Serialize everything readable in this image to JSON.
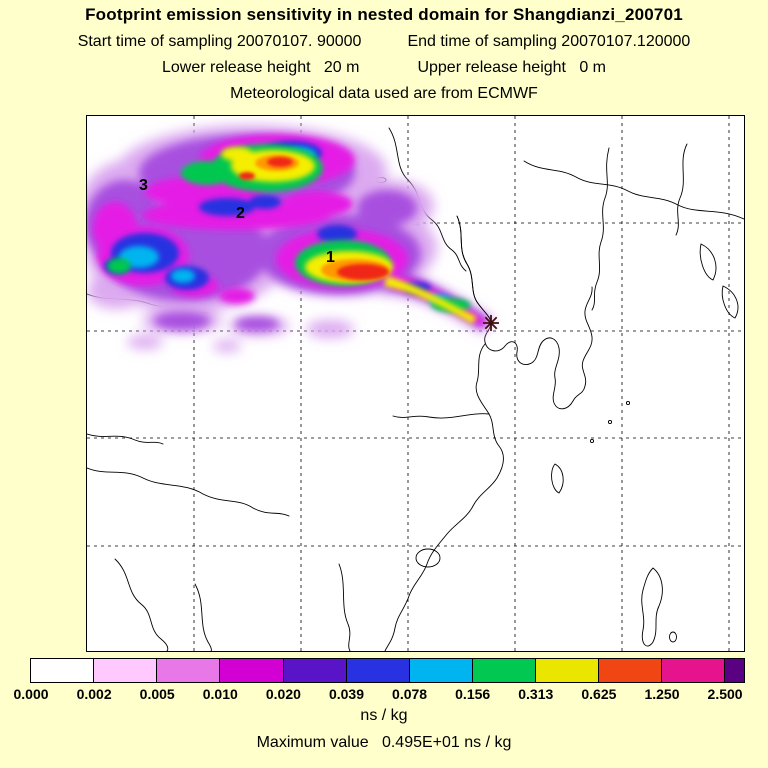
{
  "header": {
    "title": "Footprint emission sensitivity in nested domain for Shangdianzi_200701",
    "sampling": {
      "start": "Start time of sampling 20070107. 90000",
      "end": "End time of sampling 20070107.120000"
    },
    "release": {
      "lower": "Lower release height   20 m",
      "upper": "Upper release height   0 m"
    },
    "met_source": "Meteorological data used are from ECMWF"
  },
  "map": {
    "annotations": [
      {
        "text": "3"
      },
      {
        "text": "2"
      },
      {
        "text": "1"
      }
    ],
    "marker": "station-asterisk",
    "marker_color": "#401010"
  },
  "plume": {
    "levels": {
      "lilac": "#dcaaf0",
      "violet": "#a850e0",
      "magenta": "#e51ee5",
      "blue": "#2832e0",
      "cyan": "#00b4f0",
      "green": "#00c850",
      "yellow": "#f5ee00",
      "orange": "#ff9900",
      "red": "#f02814"
    }
  },
  "colorbar": {
    "segments": [
      {
        "color": "#ffffff",
        "w": 1
      },
      {
        "color": "#ffc8ff",
        "w": 1
      },
      {
        "color": "#e878e8",
        "w": 1
      },
      {
        "color": "#d200d2",
        "w": 1
      },
      {
        "color": "#5a14c8",
        "w": 1
      },
      {
        "color": "#2832e0",
        "w": 1
      },
      {
        "color": "#00b4f0",
        "w": 1
      },
      {
        "color": "#00c850",
        "w": 1
      },
      {
        "color": "#ebe600",
        "w": 1
      },
      {
        "color": "#f04614",
        "w": 1
      },
      {
        "color": "#e6148c",
        "w": 1
      },
      {
        "color": "#5a0082",
        "w": 0.3
      }
    ],
    "labels": [
      "0.000",
      "0.002",
      "0.005",
      "0.010",
      "0.020",
      "0.039",
      "0.078",
      "0.156",
      "0.313",
      "0.625",
      "1.250",
      "2.500"
    ],
    "units": "ns / kg"
  },
  "footer": {
    "maximum": "Maximum value   0.495E+01 ns / kg"
  },
  "chart_data": {
    "type": "heatmap",
    "title": "Footprint emission sensitivity in nested domain for Shangdianzi_200701",
    "station": "Shangdianzi_200701",
    "sampling_start": "20070107. 90000",
    "sampling_end": "20070107.120000",
    "lower_release_height_m": 20,
    "upper_release_height_m": 0,
    "meteorological_data": "ECMWF",
    "units": "ns / kg",
    "color_scale_boundaries": [
      0.0,
      0.002,
      0.005,
      0.01,
      0.02,
      0.039,
      0.078,
      0.156,
      0.313,
      0.625,
      1.25,
      2.5
    ],
    "maximum_value_text": "0.495E+01",
    "maximum_value_numeric": 4.95,
    "plume_time_labels": [
      "1",
      "2",
      "3"
    ],
    "legend_position": "bottom",
    "grid": "dashed",
    "map_region": "East Asia / China nested domain"
  }
}
